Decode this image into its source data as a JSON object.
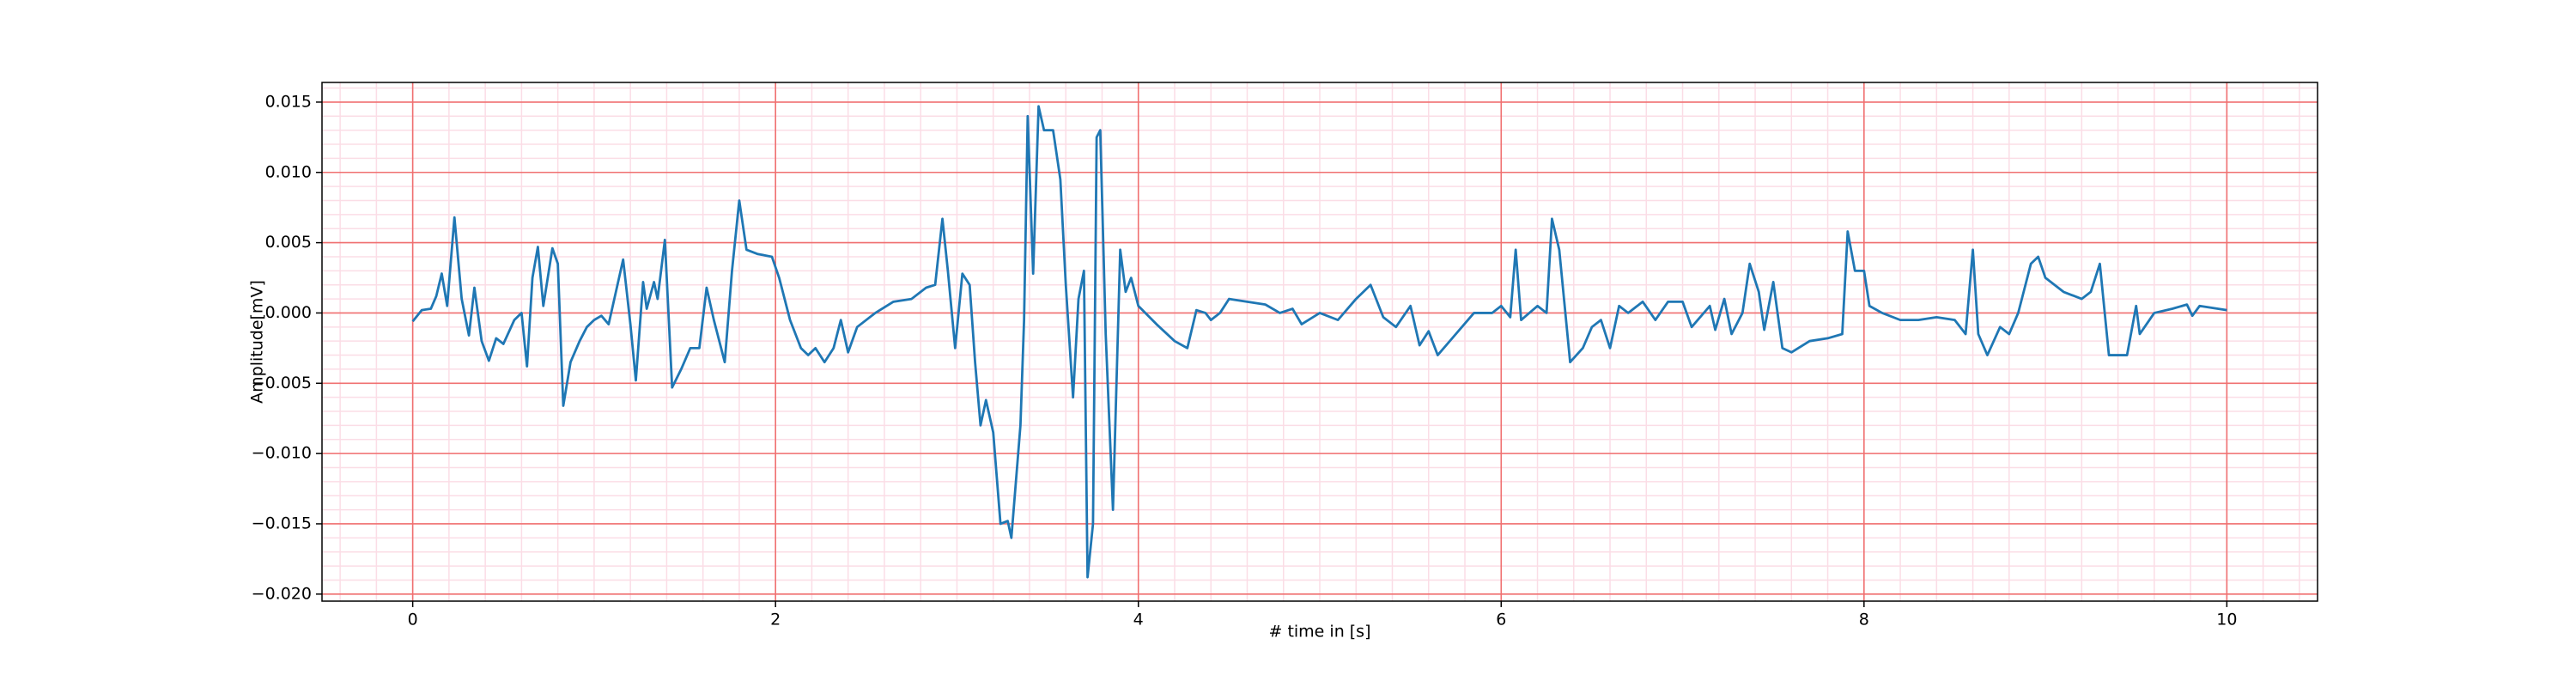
{
  "chart_data": {
    "type": "line",
    "xlabel": "# time in [s]",
    "ylabel": "Amplitude[mV]",
    "xlim": [
      -0.5,
      10.5
    ],
    "ylim": [
      -0.0205,
      0.0164
    ],
    "xticks": [
      0,
      2,
      4,
      6,
      8,
      10
    ],
    "yticks": [
      {
        "value": -0.02,
        "label": "−0.020"
      },
      {
        "value": -0.015,
        "label": "−0.015"
      },
      {
        "value": -0.01,
        "label": "−0.010"
      },
      {
        "value": -0.005,
        "label": "−0.005"
      },
      {
        "value": 0,
        "label": "0.000"
      },
      0.005,
      {
        "value": 0.01,
        "label": "0.010"
      },
      0.015
    ],
    "grid": true,
    "grid_color": "#f07070",
    "minor_grid": {
      "x": 0.2,
      "y": 0.001,
      "color": "#fbdde6"
    },
    "x": [
      0.0,
      0.05,
      0.1,
      0.13,
      0.16,
      0.19,
      0.23,
      0.27,
      0.31,
      0.34,
      0.38,
      0.42,
      0.46,
      0.5,
      0.56,
      0.6,
      0.63,
      0.66,
      0.69,
      0.72,
      0.77,
      0.8,
      0.83,
      0.87,
      0.92,
      0.96,
      1.0,
      1.04,
      1.08,
      1.12,
      1.16,
      1.2,
      1.23,
      1.27,
      1.29,
      1.33,
      1.35,
      1.39,
      1.43,
      1.48,
      1.53,
      1.58,
      1.62,
      1.66,
      1.72,
      1.76,
      1.8,
      1.84,
      1.9,
      1.98,
      2.02,
      2.08,
      2.14,
      2.18,
      2.22,
      2.27,
      2.32,
      2.36,
      2.4,
      2.45,
      2.55,
      2.65,
      2.75,
      2.83,
      2.88,
      2.92,
      2.95,
      2.99,
      3.03,
      3.07,
      3.1,
      3.13,
      3.16,
      3.2,
      3.24,
      3.28,
      3.3,
      3.35,
      3.37,
      3.39,
      3.42,
      3.45,
      3.48,
      3.53,
      3.57,
      3.6,
      3.64,
      3.67,
      3.7,
      3.72,
      3.75,
      3.77,
      3.79,
      3.82,
      3.86,
      3.9,
      3.93,
      3.96,
      4.0,
      4.1,
      4.2,
      4.27,
      4.32,
      4.37,
      4.4,
      4.45,
      4.5,
      4.6,
      4.7,
      4.78,
      4.85,
      4.9,
      5.0,
      5.1,
      5.2,
      5.28,
      5.35,
      5.42,
      5.5,
      5.55,
      5.6,
      5.65,
      5.75,
      5.85,
      5.95,
      6.0,
      6.05,
      6.08,
      6.11,
      6.2,
      6.25,
      6.28,
      6.32,
      6.38,
      6.45,
      6.5,
      6.55,
      6.6,
      6.65,
      6.7,
      6.78,
      6.85,
      6.92,
      7.0,
      7.05,
      7.15,
      7.18,
      7.23,
      7.27,
      7.33,
      7.37,
      7.42,
      7.45,
      7.5,
      7.55,
      7.6,
      7.7,
      7.8,
      7.88,
      7.91,
      7.95,
      8.0,
      8.03,
      8.1,
      8.2,
      8.3,
      8.4,
      8.5,
      8.56,
      8.6,
      8.63,
      8.68,
      8.75,
      8.8,
      8.85,
      8.92,
      8.96,
      9.0,
      9.1,
      9.2,
      9.25,
      9.3,
      9.35,
      9.45,
      9.5,
      9.52,
      9.6,
      9.7,
      9.78,
      9.81,
      9.85,
      9.95,
      10.0
    ],
    "series": [
      {
        "color": "#1f77b4",
        "values": [
          -0.0006,
          0.0002,
          0.0003,
          0.0012,
          0.0028,
          0.0005,
          0.0068,
          0.001,
          -0.0016,
          0.0018,
          -0.002,
          -0.0034,
          -0.0018,
          -0.0022,
          -0.0005,
          0.0,
          -0.0038,
          0.0025,
          0.0047,
          0.0005,
          0.0046,
          0.0035,
          -0.0066,
          -0.0035,
          -0.002,
          -0.001,
          -0.0005,
          -0.0002,
          -0.0008,
          0.0015,
          0.0038,
          -0.0008,
          -0.0048,
          0.0022,
          0.0003,
          0.0022,
          0.001,
          0.0052,
          -0.0053,
          -0.004,
          -0.0025,
          -0.0025,
          0.0018,
          -0.0005,
          -0.0035,
          0.003,
          0.008,
          0.0045,
          0.0042,
          0.004,
          0.0025,
          -0.0005,
          -0.0025,
          -0.003,
          -0.0025,
          -0.0035,
          -0.0025,
          -0.0005,
          -0.0028,
          -0.001,
          0.0,
          0.0008,
          0.001,
          0.0018,
          0.002,
          0.0067,
          0.003,
          -0.0025,
          0.0028,
          0.002,
          -0.0035,
          -0.008,
          -0.0062,
          -0.0085,
          -0.015,
          -0.0148,
          -0.016,
          -0.008,
          -0.0005,
          0.014,
          0.0028,
          0.0147,
          0.013,
          0.013,
          0.0095,
          0.002,
          -0.006,
          0.001,
          0.003,
          -0.0188,
          -0.015,
          0.0125,
          0.013,
          -0.0015,
          -0.014,
          0.0045,
          0.0015,
          0.0025,
          0.0005,
          -0.0008,
          -0.002,
          -0.0025,
          0.0002,
          0.0,
          -0.0005,
          0.0,
          0.001,
          0.0008,
          0.0006,
          0.0,
          0.0003,
          -0.0008,
          0.0,
          -0.0005,
          0.001,
          0.002,
          -0.0003,
          -0.001,
          0.0005,
          -0.0023,
          -0.0013,
          -0.003,
          -0.0015,
          0.0,
          0.0,
          0.0005,
          -0.0003,
          0.0045,
          -0.0005,
          0.0005,
          0.0,
          0.0067,
          0.0045,
          -0.0035,
          -0.0025,
          -0.001,
          -0.0005,
          -0.0025,
          0.0005,
          0.0,
          0.0008,
          -0.0005,
          0.0008,
          0.0008,
          -0.001,
          0.0005,
          -0.0012,
          0.001,
          -0.0015,
          0.0,
          0.0035,
          0.0015,
          -0.0012,
          0.0022,
          -0.0025,
          -0.0028,
          -0.002,
          -0.0018,
          -0.0015,
          0.0058,
          0.003,
          0.003,
          0.0005,
          0.0,
          -0.0005,
          -0.0005,
          -0.0003,
          -0.0005,
          -0.0015,
          0.0045,
          -0.0015,
          -0.003,
          -0.001,
          -0.0015,
          0.0,
          0.0035,
          0.004,
          0.0025,
          0.0015,
          0.001,
          0.0015,
          0.0035,
          -0.003,
          -0.003,
          0.0005,
          -0.0015,
          0.0,
          0.0003,
          0.0006,
          -0.0002,
          0.0005,
          0.0003,
          0.0002
        ]
      }
    ]
  }
}
